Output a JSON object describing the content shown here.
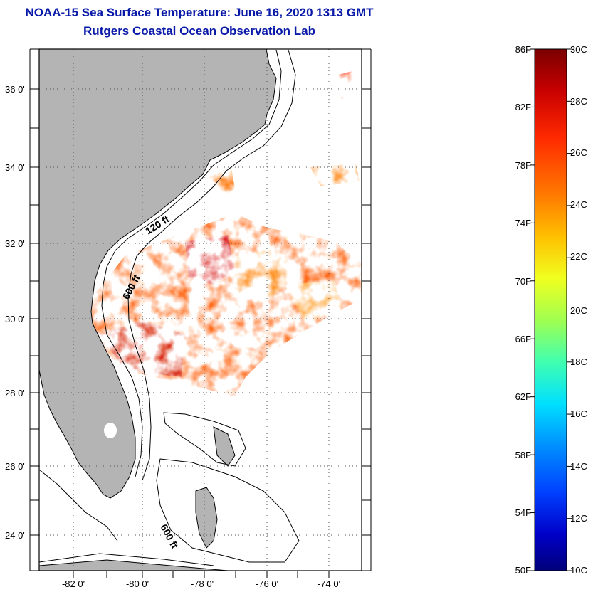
{
  "header": {
    "title": "NOAA-15 Sea Surface Temperature:  June 16, 2020 1313 GMT",
    "subtitle": "Rutgers Coastal Ocean Observation Lab"
  },
  "map": {
    "lat_ticks": [
      "36 0'",
      "34 0'",
      "32 0'",
      "30 0'",
      "28 0'",
      "26 0'",
      "24 0'"
    ],
    "lon_ticks": [
      "-82 0'",
      "-80 0'",
      "-78 0'",
      "-76 0'",
      "-74 0'"
    ],
    "contour_labels": [
      "120 ft",
      "600 ft",
      "600 ft"
    ],
    "land_color": "#b4b4b4"
  },
  "colorbar": {
    "f_labels": [
      "86F",
      "82F",
      "78F",
      "74F",
      "70F",
      "66F",
      "62F",
      "58F",
      "54F",
      "50F"
    ],
    "c_labels": [
      "30C",
      "28C",
      "26C",
      "24C",
      "22C",
      "20C",
      "18C",
      "16C",
      "14C",
      "12C",
      "10C"
    ],
    "colors": [
      "#7a0000",
      "#c80000",
      "#ff2a00",
      "#ff7a00",
      "#ffc000",
      "#f0ff20",
      "#a0ff50",
      "#40ffb0",
      "#00e0ff",
      "#0090ff",
      "#0040ff",
      "#0000c8",
      "#00007a"
    ]
  }
}
